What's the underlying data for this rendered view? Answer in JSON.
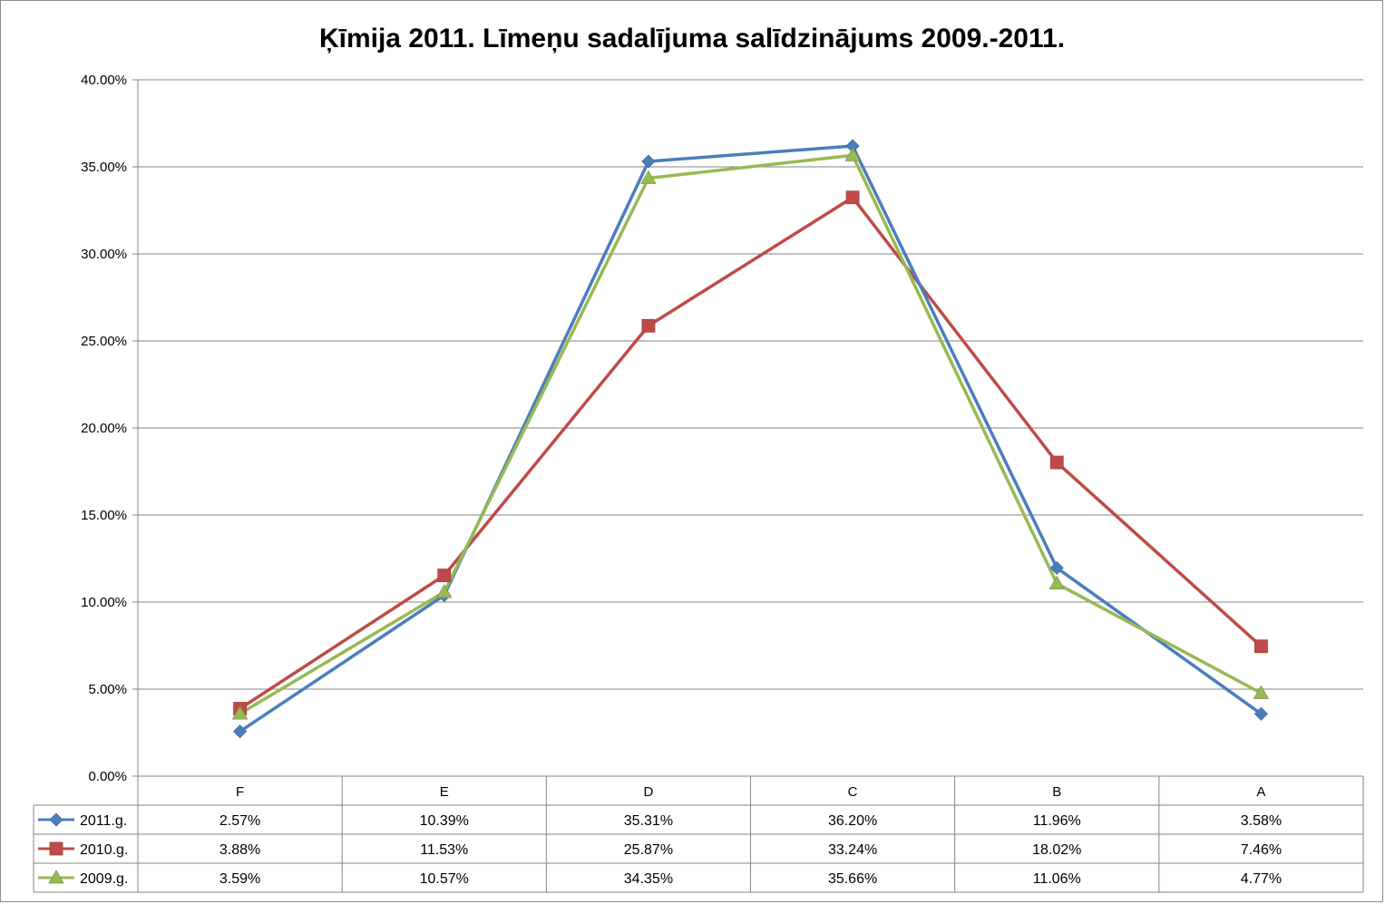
{
  "chart_data": {
    "type": "line",
    "title": "Ķīmija 2011. Līmeņu sadalījuma salīdzinājums 2009.-2011.",
    "xlabel": "",
    "ylabel": "",
    "categories": [
      "F",
      "E",
      "D",
      "C",
      "B",
      "A"
    ],
    "ylim": [
      0,
      40
    ],
    "y_ticks": [
      "0.00%",
      "5.00%",
      "10.00%",
      "15.00%",
      "20.00%",
      "25.00%",
      "30.00%",
      "35.00%",
      "40.00%"
    ],
    "grid": true,
    "legend": "data-table-left",
    "series": [
      {
        "name": "2011.g.",
        "color": "#4a7ebb",
        "marker": "diamond",
        "values": [
          2.57,
          10.39,
          35.31,
          36.2,
          11.96,
          3.58
        ],
        "labels": [
          "2.57%",
          "10.39%",
          "35.31%",
          "36.20%",
          "11.96%",
          "3.58%"
        ]
      },
      {
        "name": "2010.g.",
        "color": "#be4b48",
        "marker": "square",
        "values": [
          3.88,
          11.53,
          25.87,
          33.24,
          18.02,
          7.46
        ],
        "labels": [
          "3.88%",
          "11.53%",
          "25.87%",
          "33.24%",
          "18.02%",
          "7.46%"
        ]
      },
      {
        "name": "2009.g.",
        "color": "#98b954",
        "marker": "triangle",
        "values": [
          3.59,
          10.57,
          34.35,
          35.66,
          11.06,
          4.77
        ],
        "labels": [
          "3.59%",
          "10.57%",
          "34.35%",
          "35.66%",
          "11.06%",
          "4.77%"
        ]
      }
    ]
  }
}
